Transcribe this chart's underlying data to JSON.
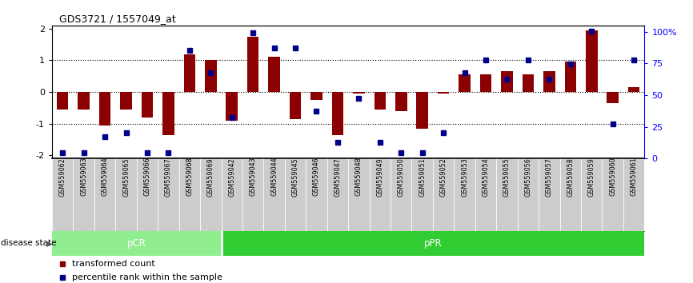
{
  "title": "GDS3721 / 1557049_at",
  "samples": [
    "GSM559062",
    "GSM559063",
    "GSM559064",
    "GSM559065",
    "GSM559066",
    "GSM559067",
    "GSM559068",
    "GSM559069",
    "GSM559042",
    "GSM559043",
    "GSM559044",
    "GSM559045",
    "GSM559046",
    "GSM559047",
    "GSM559048",
    "GSM559049",
    "GSM559050",
    "GSM559051",
    "GSM559052",
    "GSM559053",
    "GSM559054",
    "GSM559055",
    "GSM559056",
    "GSM559057",
    "GSM559058",
    "GSM559059",
    "GSM559060",
    "GSM559061"
  ],
  "transformed_count": [
    -0.55,
    -0.55,
    -1.05,
    -0.55,
    -0.8,
    -1.35,
    1.2,
    1.0,
    -0.9,
    1.75,
    1.1,
    -0.85,
    -0.25,
    -1.35,
    -0.05,
    -0.55,
    -0.6,
    -1.15,
    -0.05,
    0.55,
    0.55,
    0.65,
    0.55,
    0.65,
    0.95,
    1.95,
    -0.35,
    0.15
  ],
  "percentile_rank": [
    2,
    2,
    15,
    18,
    2,
    2,
    83,
    65,
    30,
    97,
    85,
    85,
    35,
    10,
    45,
    10,
    2,
    2,
    18,
    65,
    75,
    60,
    75,
    60,
    72,
    98,
    25,
    75
  ],
  "pCR_count": 8,
  "pPR_count": 20,
  "bar_color": "#8B0000",
  "dot_color": "#00008B",
  "background_color": "#ffffff",
  "pCR_color": "#90EE90",
  "pPR_color": "#32CD32",
  "xtick_bg_color": "#cccccc",
  "yticks_left": [
    -2,
    -1,
    0,
    1,
    2
  ],
  "yticks_right": [
    0,
    25,
    50,
    75,
    100
  ],
  "ytick_labels_right": [
    "0",
    "25",
    "50",
    "75",
    "100%"
  ],
  "ylim": [
    -2.1,
    2.1
  ],
  "legend_transformed": "transformed count",
  "legend_percentile": "percentile rank within the sample",
  "figwidth": 8.66,
  "figheight": 3.54,
  "dpi": 100
}
